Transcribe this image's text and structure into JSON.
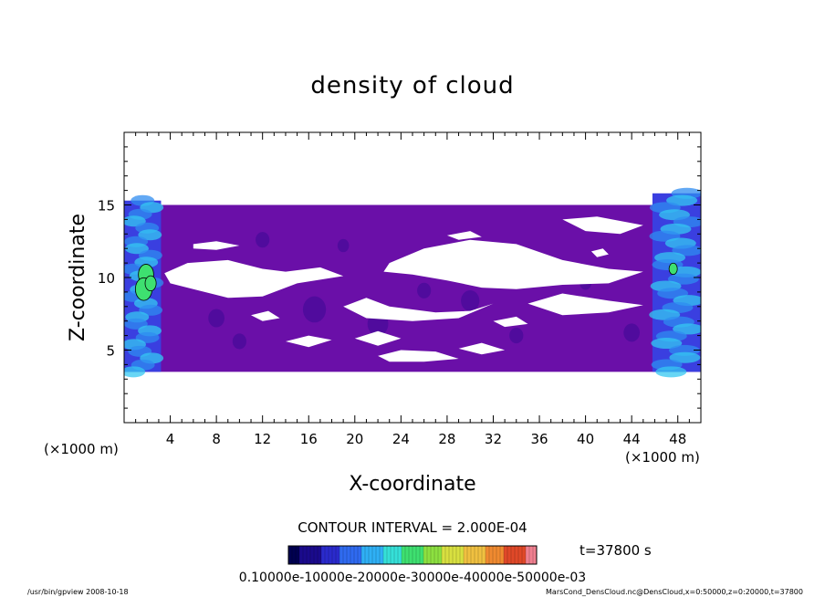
{
  "chart_data": {
    "type": "heatmap",
    "title": "density of cloud",
    "xlabel": "X-coordinate",
    "ylabel": "Z-coordinate",
    "x_unit": "(×1000 m)",
    "x_unit_right": "(×1000 m)",
    "xlim": [
      0,
      50
    ],
    "ylim": [
      0,
      20
    ],
    "xticks": [
      4,
      8,
      12,
      16,
      20,
      24,
      28,
      32,
      36,
      40,
      44,
      48
    ],
    "yticks": [
      5,
      10,
      15
    ],
    "xtick_labels": [
      "4",
      "8",
      "12",
      "16",
      "20",
      "24",
      "28",
      "32",
      "36",
      "40",
      "44",
      "48"
    ],
    "ytick_labels": [
      "5",
      "10",
      "15"
    ],
    "x_minor_step": 1,
    "y_minor_step": 1,
    "filled_band": [
      3.5,
      15
    ],
    "base_color": "#6a0fa8",
    "gap_color": "#ffffff",
    "cloud_free_gaps": [
      {
        "points": [
          [
            3.5,
            10.3
          ],
          [
            5.5,
            11.0
          ],
          [
            9,
            11.2
          ],
          [
            12,
            10.6
          ],
          [
            14,
            10.4
          ],
          [
            17,
            10.7
          ],
          [
            19,
            10.1
          ],
          [
            15,
            9.6
          ],
          [
            12,
            8.7
          ],
          [
            9,
            8.6
          ],
          [
            6,
            9.2
          ],
          [
            4,
            9.6
          ]
        ]
      },
      {
        "points": [
          [
            23,
            11.0
          ],
          [
            26,
            12.0
          ],
          [
            30,
            12.6
          ],
          [
            34,
            12.3
          ],
          [
            38,
            11.2
          ],
          [
            42,
            10.6
          ],
          [
            45,
            10.4
          ],
          [
            42,
            9.6
          ],
          [
            38,
            9.5
          ],
          [
            34,
            9.2
          ],
          [
            31,
            9.3
          ],
          [
            28,
            9.8
          ],
          [
            25,
            10.2
          ],
          [
            22.5,
            10.4
          ]
        ]
      },
      {
        "points": [
          [
            6,
            12.3
          ],
          [
            8,
            12.5
          ],
          [
            10,
            12.2
          ],
          [
            8,
            11.9
          ],
          [
            6,
            12.0
          ]
        ]
      },
      {
        "points": [
          [
            19,
            8.0
          ],
          [
            21,
            8.6
          ],
          [
            23,
            8.0
          ],
          [
            27,
            7.6
          ],
          [
            30,
            7.7
          ],
          [
            32,
            8.2
          ],
          [
            29,
            7.2
          ],
          [
            25,
            7.0
          ],
          [
            21,
            7.2
          ]
        ]
      },
      {
        "points": [
          [
            35,
            8.2
          ],
          [
            38,
            8.9
          ],
          [
            42,
            8.4
          ],
          [
            45,
            8.1
          ],
          [
            42,
            7.6
          ],
          [
            38,
            7.4
          ]
        ]
      },
      {
        "points": [
          [
            38,
            14.0
          ],
          [
            41,
            14.2
          ],
          [
            45,
            13.6
          ],
          [
            43,
            13.0
          ],
          [
            40,
            13.2
          ]
        ]
      },
      {
        "points": [
          [
            28,
            12.9
          ],
          [
            30,
            13.2
          ],
          [
            31,
            12.8
          ],
          [
            29,
            12.6
          ]
        ]
      },
      {
        "points": [
          [
            32,
            7.0
          ],
          [
            34,
            7.3
          ],
          [
            35,
            6.8
          ],
          [
            33,
            6.6
          ]
        ]
      },
      {
        "points": [
          [
            14,
            5.6
          ],
          [
            16,
            6.0
          ],
          [
            18,
            5.7
          ],
          [
            16,
            5.2
          ]
        ]
      },
      {
        "points": [
          [
            20,
            5.8
          ],
          [
            22,
            6.3
          ],
          [
            24,
            5.8
          ],
          [
            22,
            5.3
          ]
        ]
      },
      {
        "points": [
          [
            22,
            4.6
          ],
          [
            24,
            5.0
          ],
          [
            27,
            4.9
          ],
          [
            29,
            4.4
          ],
          [
            26,
            4.2
          ],
          [
            23,
            4.2
          ]
        ]
      },
      {
        "points": [
          [
            29,
            5.1
          ],
          [
            31,
            5.5
          ],
          [
            33,
            5.0
          ],
          [
            31,
            4.7
          ]
        ]
      },
      {
        "points": [
          [
            11,
            7.4
          ],
          [
            12.5,
            7.7
          ],
          [
            13.5,
            7.2
          ],
          [
            12,
            7.0
          ]
        ]
      },
      {
        "points": [
          [
            40.5,
            11.8
          ],
          [
            41.5,
            12.0
          ],
          [
            42,
            11.6
          ],
          [
            41,
            11.4
          ]
        ]
      }
    ],
    "dark_spots": [
      {
        "x": 16.5,
        "y": 7.8,
        "r": 1.0
      },
      {
        "x": 22,
        "y": 6.8,
        "r": 0.9
      },
      {
        "x": 30,
        "y": 8.4,
        "r": 0.8
      },
      {
        "x": 8,
        "y": 7.2,
        "r": 0.7
      },
      {
        "x": 36,
        "y": 10.2,
        "r": 0.7
      },
      {
        "x": 26,
        "y": 9.1,
        "r": 0.6
      },
      {
        "x": 12,
        "y": 12.6,
        "r": 0.6
      },
      {
        "x": 44,
        "y": 6.2,
        "r": 0.7
      },
      {
        "x": 19,
        "y": 12.2,
        "r": 0.5
      },
      {
        "x": 34,
        "y": 6.0,
        "r": 0.6
      },
      {
        "x": 10,
        "y": 5.6,
        "r": 0.6
      },
      {
        "x": 40,
        "y": 9.6,
        "r": 0.5
      }
    ],
    "edge_plumes": [
      {
        "x_range": [
          0,
          3.2
        ],
        "z_range": [
          3.5,
          15.3
        ],
        "colors": [
          "#3a3fe0",
          "#2f8cf0",
          "#36c8f2"
        ]
      },
      {
        "x_range": [
          45.8,
          50
        ],
        "z_range": [
          3.5,
          15.8
        ],
        "colors": [
          "#3a3fe0",
          "#2f8cf0",
          "#36c8f2"
        ]
      }
    ],
    "green_patches": [
      {
        "x": 1.9,
        "y": 10.2,
        "r": 0.55
      },
      {
        "x": 1.7,
        "y": 9.2,
        "r": 0.6
      },
      {
        "x": 2.3,
        "y": 9.6,
        "r": 0.4
      },
      {
        "x": 47.6,
        "y": 10.6,
        "r": 0.3
      }
    ],
    "contour_interval_text": "CONTOUR INTERVAL = 2.000E-04",
    "time_label": "t=37800 s",
    "colorbar": {
      "min": 0.0001,
      "max": 0.0006,
      "label_text": "0.10000e-10000e-20000e-30000e-40000e-50000e-03",
      "colors": [
        "#000050",
        "#1a0a8c",
        "#2a2acc",
        "#2f6af0",
        "#2fb0f5",
        "#35e0d8",
        "#3ee070",
        "#8ce040",
        "#d8e040",
        "#f0c040",
        "#f08a30",
        "#e04828",
        "#f08090"
      ]
    }
  },
  "footer": {
    "left": "/usr/bin/gpview   2008-10-18",
    "right": "MarsCond_DensCloud.nc@DensCloud,x=0:50000,z=0:20000,t=37800"
  }
}
